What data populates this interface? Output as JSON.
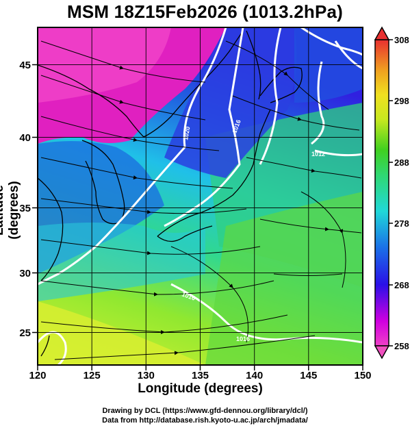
{
  "title": "MSM 18Z15Feb2026 (1013.2hPa)",
  "xlabel": "Longitude (degrees)",
  "ylabel": "Latitude (degrees)",
  "credits": {
    "line1": "Drawing by DCL (https://www.gfd-dennou.org/library/dcl/)",
    "line2": "Data from http://database.rish.kyoto-u.ac.jp/arch/jmadata/"
  },
  "map": {
    "lon_range": [
      120,
      150
    ],
    "lat_range": [
      22.5,
      47.5
    ],
    "lon_ticks": [
      "120",
      "125",
      "130",
      "135",
      "140",
      "145",
      "150"
    ],
    "lat_ticks": [
      "25",
      "30",
      "35",
      "40",
      "45"
    ],
    "field": "temperature (K)",
    "overlay": [
      "streamlines",
      "isobars",
      "coastlines",
      "lat-lon grid"
    ],
    "isobar_labels": [
      "1020",
      "1016",
      "1016",
      "1016",
      "1012"
    ]
  },
  "colorbar": {
    "range": [
      258,
      308
    ],
    "labels": [
      "308",
      "298",
      "288",
      "278",
      "268",
      "258"
    ],
    "colors": [
      "#e8303a",
      "#f0a020",
      "#e8e820",
      "#40d040",
      "#30d8d0",
      "#2030e0",
      "#d000d0",
      "#f040c0"
    ]
  }
}
